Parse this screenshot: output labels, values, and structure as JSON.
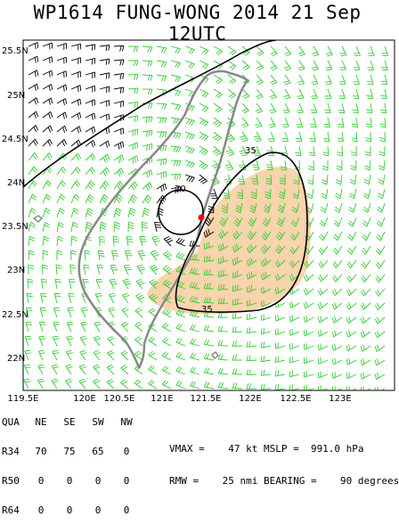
{
  "title": "WP1614  FUNG-WONG 2014 21 Sep 12UTC",
  "map": {
    "lat_labels": [
      "25.5N",
      "25N",
      "24.5N",
      "24N",
      "23.5N",
      "23N",
      "22.5N",
      "22N"
    ],
    "lon_labels": [
      "119.5E",
      "120E",
      "120.5E",
      "121E",
      "121.5E",
      "122E",
      "122.5E",
      "123E"
    ],
    "contour_labels": {
      "inner": "20",
      "outer_top": "35",
      "outer_bottom": "35"
    },
    "colors": {
      "wind_barbs": "#33cc33",
      "strong_barbs": "#000000",
      "coast": "#777777",
      "r34_shading": "#f5b066",
      "center": "#ff0000"
    },
    "center_marker": "storm-center"
  },
  "table": {
    "header": [
      "QUA",
      "NE",
      "SE",
      "SW",
      "NW"
    ],
    "rows": [
      {
        "label": "R34",
        "values": [
          "70",
          "75",
          "65",
          "0"
        ]
      },
      {
        "label": "R50",
        "values": [
          "0",
          "0",
          "0",
          "0"
        ]
      },
      {
        "label": "R64",
        "values": [
          "0",
          "0",
          "0",
          "0"
        ]
      }
    ]
  },
  "metrics": {
    "line1": "VMAX =    47 kt MSLP =  991.0 hPa",
    "line2": "RMW =    25 nmi BEARING =    90 degrees"
  }
}
